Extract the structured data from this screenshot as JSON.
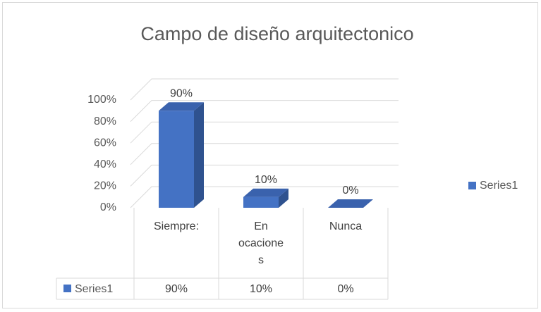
{
  "chart_data": {
    "type": "bar3d",
    "title": "Campo de diseño arquitectonico",
    "categories": [
      "Siempre:",
      "En ocaciones",
      "Nunca"
    ],
    "series": [
      {
        "name": "Series1",
        "color": "#4472c4",
        "values": [
          90,
          10,
          0
        ],
        "value_labels": [
          "90%",
          "10%",
          "0%"
        ]
      }
    ],
    "ylim": [
      0,
      100
    ],
    "yticks": [
      {
        "value": 0,
        "label": "0%"
      },
      {
        "value": 20,
        "label": "20%"
      },
      {
        "value": 40,
        "label": "40%"
      },
      {
        "value": 60,
        "label": "60%"
      },
      {
        "value": 80,
        "label": "80%"
      },
      {
        "value": 100,
        "label": "100%"
      }
    ],
    "grid": true,
    "legend": "right",
    "data_table": true
  }
}
